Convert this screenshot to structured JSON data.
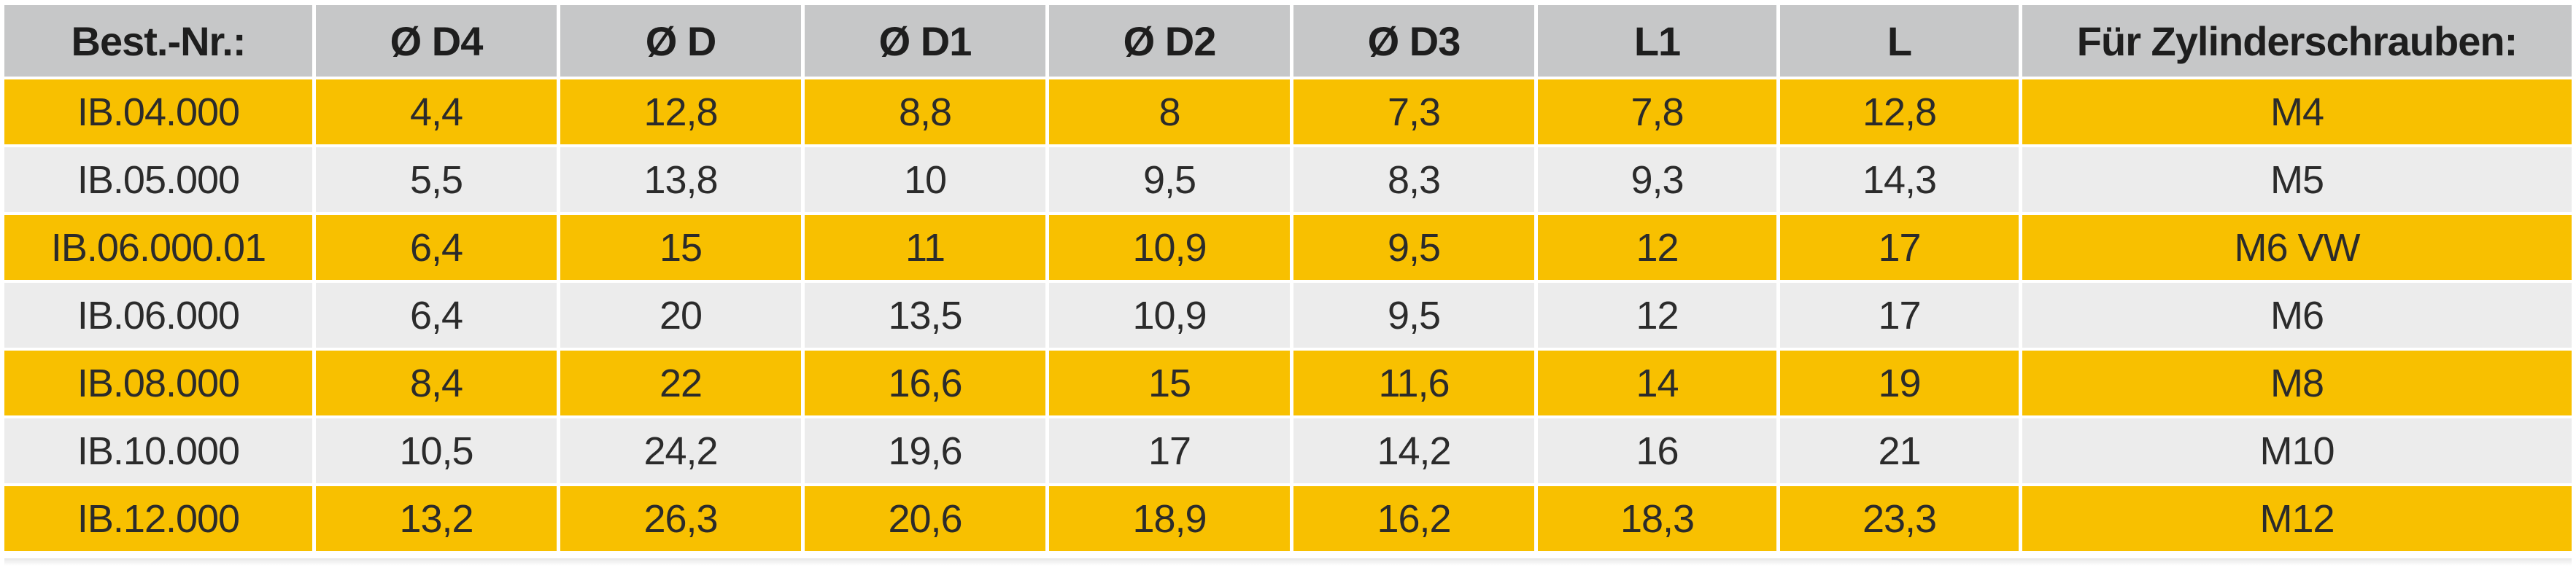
{
  "table": {
    "headers": [
      "Best.-Nr.:",
      "Ø D4",
      "Ø D",
      "Ø D1",
      "Ø D2",
      "Ø D3",
      "L1",
      "L",
      "Für Zylinderschrauben:"
    ],
    "rows": [
      [
        "IB.04.000",
        "4,4",
        "12,8",
        "8,8",
        "8",
        "7,3",
        "7,8",
        "12,8",
        "M4"
      ],
      [
        "IB.05.000",
        "5,5",
        "13,8",
        "10",
        "9,5",
        "8,3",
        "9,3",
        "14,3",
        "M5"
      ],
      [
        "IB.06.000.01",
        "6,4",
        "15",
        "11",
        "10,9",
        "9,5",
        "12",
        "17",
        "M6 VW"
      ],
      [
        "IB.06.000",
        "6,4",
        "20",
        "13,5",
        "10,9",
        "9,5",
        "12",
        "17",
        "M6"
      ],
      [
        "IB.08.000",
        "8,4",
        "22",
        "16,6",
        "15",
        "11,6",
        "14",
        "19",
        "M8"
      ],
      [
        "IB.10.000",
        "10,5",
        "24,2",
        "19,6",
        "17",
        "14,2",
        "16",
        "21",
        "M10"
      ],
      [
        "IB.12.000",
        "13,2",
        "26,3",
        "20,6",
        "18,9",
        "16,2",
        "18,3",
        "23,3",
        "M12"
      ]
    ]
  },
  "colors": {
    "header_bg": "#c6c7c8",
    "row_yellow": "#f8c000",
    "row_grey": "#ececec",
    "text": "#2b2b2b",
    "separator": "#ffffff"
  }
}
